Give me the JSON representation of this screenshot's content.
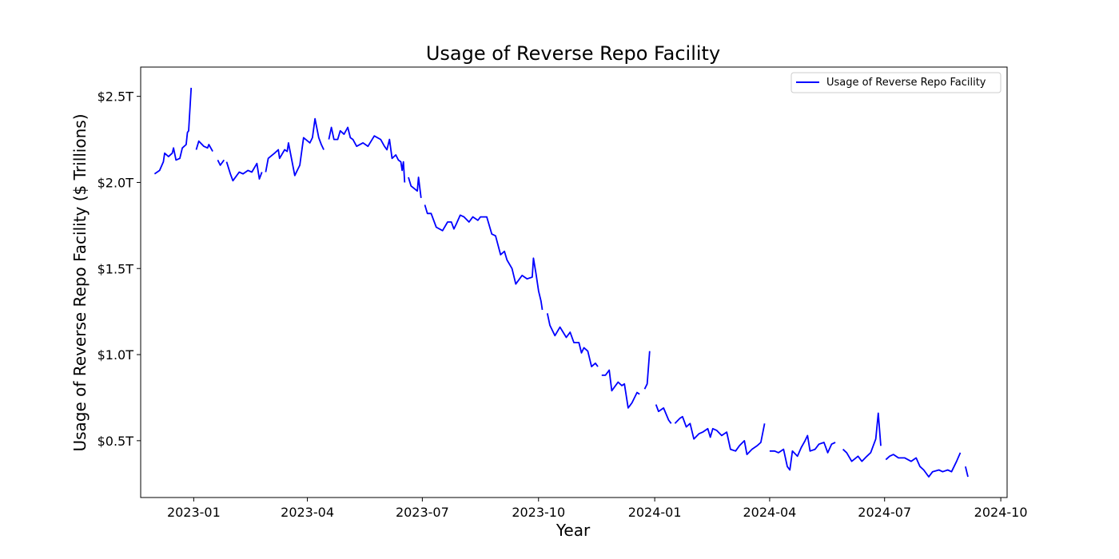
{
  "chart_data": {
    "type": "line",
    "title": "Usage of Reverse Repo Facility",
    "xlabel": "Year",
    "ylabel": "Usage of Reverse Repo Facility ($ Trillions)",
    "legend": {
      "placement": "upper-right",
      "entries": [
        "Usage of Reverse Repo Facility"
      ]
    },
    "grid": false,
    "xlim": [
      "2022-11-20",
      "2024-10-06"
    ],
    "ylim": [
      0.17,
      2.67
    ],
    "x_ticks": [
      "2023-01",
      "2023-04",
      "2023-07",
      "2023-10",
      "2024-01",
      "2024-04",
      "2024-07",
      "2024-10"
    ],
    "y_ticks": [
      {
        "value": 0.5,
        "label": "$0.5T"
      },
      {
        "value": 1.0,
        "label": "$1.0T"
      },
      {
        "value": 1.5,
        "label": "$1.5T"
      },
      {
        "value": 2.0,
        "label": "$2.0T"
      },
      {
        "value": 2.5,
        "label": "$2.5T"
      }
    ],
    "series": [
      {
        "name": "Usage of Reverse Repo Facility",
        "color": "#0000ff",
        "points": [
          [
            "2022-12-01",
            2.05
          ],
          [
            "2022-12-05",
            2.07
          ],
          [
            "2022-12-08",
            2.12
          ],
          [
            "2022-12-09",
            2.17
          ],
          [
            "2022-12-12",
            2.15
          ],
          [
            "2022-12-15",
            2.17
          ],
          [
            "2022-12-16",
            2.2
          ],
          [
            "2022-12-18",
            2.13
          ],
          [
            "2022-12-21",
            2.14
          ],
          [
            "2022-12-23",
            2.2
          ],
          [
            "2022-12-26",
            2.22
          ],
          [
            "2022-12-27",
            2.29
          ],
          [
            "2022-12-28",
            2.3
          ],
          [
            "2022-12-30",
            2.55
          ],
          null,
          [
            "2023-01-03",
            2.19
          ],
          [
            "2023-01-05",
            2.24
          ],
          [
            "2023-01-09",
            2.21
          ],
          [
            "2023-01-12",
            2.2
          ],
          [
            "2023-01-13",
            2.22
          ],
          [
            "2023-01-16",
            2.18
          ],
          null,
          [
            "2023-01-20",
            2.13
          ],
          [
            "2023-01-22",
            2.1
          ],
          [
            "2023-01-25",
            2.13
          ],
          null,
          [
            "2023-01-27",
            2.12
          ],
          [
            "2023-01-30",
            2.05
          ],
          [
            "2023-02-01",
            2.01
          ],
          [
            "2023-02-06",
            2.06
          ],
          [
            "2023-02-09",
            2.05
          ],
          [
            "2023-02-13",
            2.07
          ],
          [
            "2023-02-16",
            2.06
          ],
          [
            "2023-02-20",
            2.11
          ],
          [
            "2023-02-22",
            2.02
          ],
          [
            "2023-02-24",
            2.06
          ],
          null,
          [
            "2023-02-27",
            2.06
          ],
          [
            "2023-03-01",
            2.14
          ],
          [
            "2023-03-06",
            2.17
          ],
          [
            "2023-03-09",
            2.19
          ],
          [
            "2023-03-10",
            2.14
          ],
          [
            "2023-03-14",
            2.19
          ],
          [
            "2023-03-16",
            2.18
          ],
          [
            "2023-03-17",
            2.23
          ],
          [
            "2023-03-22",
            2.04
          ],
          [
            "2023-03-24",
            2.07
          ],
          [
            "2023-03-26",
            2.1
          ],
          [
            "2023-03-29",
            2.26
          ],
          [
            "2023-04-03",
            2.23
          ],
          [
            "2023-04-05",
            2.26
          ],
          [
            "2023-04-07",
            2.37
          ],
          [
            "2023-04-10",
            2.26
          ],
          [
            "2023-04-12",
            2.22
          ],
          [
            "2023-04-14",
            2.19
          ],
          null,
          [
            "2023-04-18",
            2.25
          ],
          [
            "2023-04-20",
            2.32
          ],
          [
            "2023-04-22",
            2.25
          ],
          [
            "2023-04-25",
            2.25
          ],
          [
            "2023-04-27",
            2.3
          ],
          [
            "2023-04-30",
            2.28
          ],
          [
            "2023-05-03",
            2.32
          ],
          [
            "2023-05-05",
            2.26
          ],
          [
            "2023-05-07",
            2.25
          ],
          [
            "2023-05-10",
            2.21
          ],
          [
            "2023-05-15",
            2.23
          ],
          [
            "2023-05-19",
            2.21
          ],
          [
            "2023-05-24",
            2.27
          ],
          [
            "2023-05-29",
            2.25
          ],
          [
            "2023-06-01",
            2.21
          ],
          [
            "2023-06-03",
            2.19
          ],
          [
            "2023-06-05",
            2.25
          ],
          [
            "2023-06-07",
            2.14
          ],
          [
            "2023-06-10",
            2.16
          ],
          [
            "2023-06-12",
            2.13
          ],
          [
            "2023-06-14",
            2.12
          ],
          [
            "2023-06-15",
            2.07
          ],
          [
            "2023-06-16",
            2.12
          ],
          [
            "2023-06-17",
            2.0
          ],
          null,
          [
            "2023-06-20",
            2.03
          ],
          [
            "2023-06-22",
            1.98
          ],
          [
            "2023-06-27",
            1.95
          ],
          [
            "2023-06-28",
            2.03
          ],
          [
            "2023-06-30",
            1.91
          ],
          null,
          [
            "2023-07-03",
            1.87
          ],
          [
            "2023-07-05",
            1.82
          ],
          [
            "2023-07-08",
            1.82
          ],
          [
            "2023-07-12",
            1.74
          ],
          [
            "2023-07-17",
            1.72
          ],
          [
            "2023-07-21",
            1.77
          ],
          [
            "2023-07-24",
            1.77
          ],
          [
            "2023-07-26",
            1.73
          ],
          [
            "2023-07-28",
            1.76
          ],
          [
            "2023-07-31",
            1.81
          ],
          [
            "2023-08-03",
            1.8
          ],
          [
            "2023-08-07",
            1.77
          ],
          [
            "2023-08-10",
            1.8
          ],
          [
            "2023-08-14",
            1.78
          ],
          [
            "2023-08-16",
            1.8
          ],
          [
            "2023-08-21",
            1.8
          ],
          [
            "2023-08-25",
            1.7
          ],
          [
            "2023-08-28",
            1.69
          ],
          [
            "2023-09-01",
            1.58
          ],
          [
            "2023-09-04",
            1.6
          ],
          [
            "2023-09-06",
            1.55
          ],
          [
            "2023-09-10",
            1.5
          ],
          [
            "2023-09-13",
            1.41
          ],
          [
            "2023-09-18",
            1.46
          ],
          [
            "2023-09-22",
            1.44
          ],
          [
            "2023-09-26",
            1.45
          ],
          [
            "2023-09-27",
            1.56
          ],
          [
            "2023-09-29",
            1.47
          ],
          [
            "2023-10-01",
            1.37
          ],
          [
            "2023-10-03",
            1.31
          ],
          [
            "2023-10-04",
            1.26
          ],
          null,
          [
            "2023-10-08",
            1.24
          ],
          [
            "2023-10-10",
            1.17
          ],
          [
            "2023-10-14",
            1.11
          ],
          [
            "2023-10-18",
            1.16
          ],
          [
            "2023-10-23",
            1.1
          ],
          [
            "2023-10-26",
            1.13
          ],
          [
            "2023-10-29",
            1.07
          ],
          [
            "2023-11-02",
            1.07
          ],
          [
            "2023-11-04",
            1.01
          ],
          [
            "2023-11-06",
            1.04
          ],
          [
            "2023-11-09",
            1.02
          ],
          [
            "2023-11-12",
            0.93
          ],
          [
            "2023-11-15",
            0.95
          ],
          [
            "2023-11-17",
            0.93
          ],
          null,
          [
            "2023-11-20",
            0.88
          ],
          [
            "2023-11-23",
            0.88
          ],
          [
            "2023-11-26",
            0.91
          ],
          [
            "2023-11-28",
            0.79
          ],
          [
            "2023-12-03",
            0.84
          ],
          [
            "2023-12-06",
            0.82
          ],
          [
            "2023-12-08",
            0.83
          ],
          [
            "2023-12-11",
            0.69
          ],
          [
            "2023-12-14",
            0.72
          ],
          [
            "2023-12-18",
            0.78
          ],
          [
            "2023-12-20",
            0.77
          ],
          null,
          [
            "2023-12-24",
            0.8
          ],
          [
            "2023-12-26",
            0.83
          ],
          [
            "2023-12-28",
            1.02
          ],
          null,
          [
            "2024-01-02",
            0.71
          ],
          [
            "2024-01-04",
            0.67
          ],
          [
            "2024-01-08",
            0.69
          ],
          [
            "2024-01-12",
            0.62
          ],
          [
            "2024-01-14",
            0.6
          ],
          null,
          [
            "2024-01-17",
            0.6
          ],
          [
            "2024-01-21",
            0.63
          ],
          [
            "2024-01-23",
            0.64
          ],
          [
            "2024-01-26",
            0.58
          ],
          [
            "2024-01-29",
            0.6
          ],
          [
            "2024-02-01",
            0.51
          ],
          [
            "2024-02-05",
            0.54
          ],
          [
            "2024-02-08",
            0.55
          ],
          [
            "2024-02-12",
            0.57
          ],
          [
            "2024-02-14",
            0.52
          ],
          [
            "2024-02-16",
            0.57
          ],
          [
            "2024-02-19",
            0.56
          ],
          [
            "2024-02-23",
            0.53
          ],
          [
            "2024-02-27",
            0.55
          ],
          [
            "2024-03-01",
            0.45
          ],
          [
            "2024-03-05",
            0.44
          ],
          [
            "2024-03-08",
            0.47
          ],
          [
            "2024-03-12",
            0.5
          ],
          [
            "2024-03-14",
            0.42
          ],
          [
            "2024-03-18",
            0.45
          ],
          [
            "2024-03-22",
            0.47
          ],
          [
            "2024-03-25",
            0.49
          ],
          [
            "2024-03-28",
            0.6
          ],
          null,
          [
            "2024-04-01",
            0.44
          ],
          [
            "2024-04-05",
            0.44
          ],
          [
            "2024-04-08",
            0.43
          ],
          [
            "2024-04-12",
            0.45
          ],
          [
            "2024-04-15",
            0.35
          ],
          [
            "2024-04-17",
            0.33
          ],
          [
            "2024-04-19",
            0.44
          ],
          [
            "2024-04-23",
            0.41
          ],
          [
            "2024-04-26",
            0.46
          ],
          [
            "2024-04-29",
            0.5
          ],
          [
            "2024-05-01",
            0.53
          ],
          [
            "2024-05-03",
            0.44
          ],
          [
            "2024-05-07",
            0.45
          ],
          [
            "2024-05-10",
            0.48
          ],
          [
            "2024-05-14",
            0.49
          ],
          [
            "2024-05-17",
            0.43
          ],
          [
            "2024-05-20",
            0.48
          ],
          [
            "2024-05-23",
            0.49
          ],
          null,
          [
            "2024-05-29",
            0.45
          ],
          [
            "2024-06-01",
            0.43
          ],
          [
            "2024-06-05",
            0.38
          ],
          [
            "2024-06-10",
            0.41
          ],
          [
            "2024-06-13",
            0.38
          ],
          [
            "2024-06-17",
            0.41
          ],
          [
            "2024-06-20",
            0.43
          ],
          [
            "2024-06-24",
            0.51
          ],
          [
            "2024-06-26",
            0.66
          ],
          [
            "2024-06-28",
            0.47
          ],
          null,
          [
            "2024-07-02",
            0.39
          ],
          [
            "2024-07-05",
            0.41
          ],
          [
            "2024-07-08",
            0.42
          ],
          [
            "2024-07-12",
            0.4
          ],
          [
            "2024-07-17",
            0.4
          ],
          [
            "2024-07-22",
            0.38
          ],
          [
            "2024-07-26",
            0.4
          ],
          [
            "2024-07-29",
            0.35
          ],
          [
            "2024-08-01",
            0.33
          ],
          [
            "2024-08-05",
            0.29
          ],
          [
            "2024-08-08",
            0.32
          ],
          [
            "2024-08-13",
            0.33
          ],
          [
            "2024-08-16",
            0.32
          ],
          [
            "2024-08-20",
            0.33
          ],
          [
            "2024-08-23",
            0.32
          ],
          [
            "2024-08-27",
            0.38
          ],
          [
            "2024-08-30",
            0.43
          ],
          null,
          [
            "2024-09-03",
            0.35
          ],
          [
            "2024-09-05",
            0.29
          ]
        ]
      }
    ]
  }
}
